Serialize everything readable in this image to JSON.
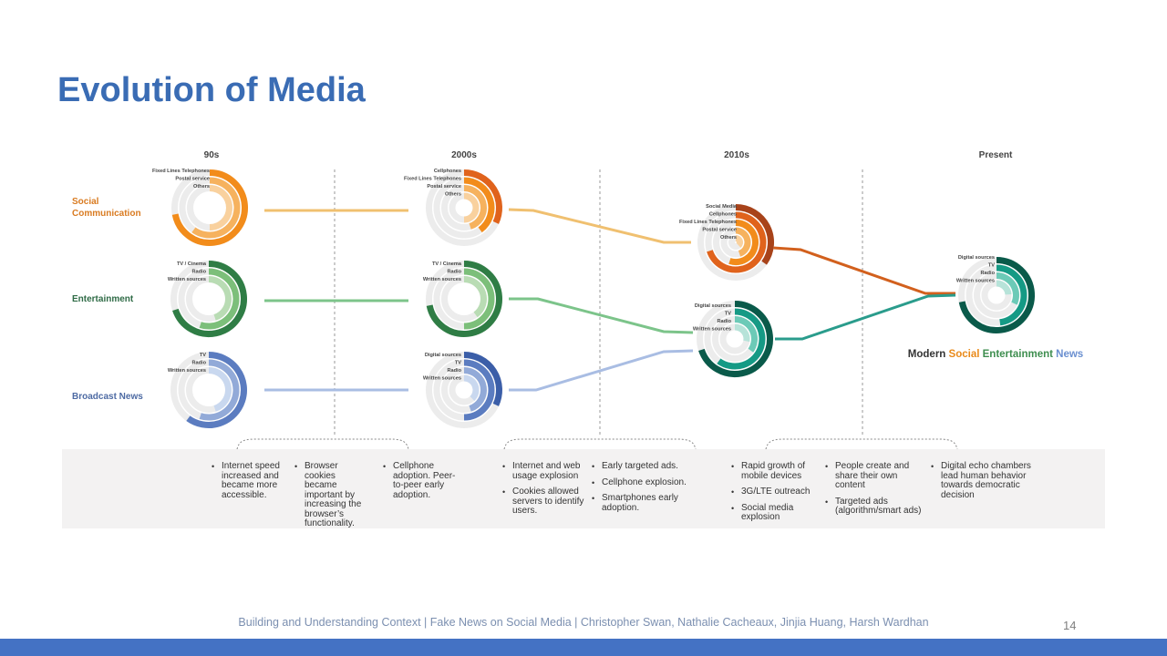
{
  "title": "Evolution of Media",
  "periods": [
    "90s",
    "2000s",
    "2010s",
    "Present"
  ],
  "categories": [
    {
      "label_lines": [
        "Social",
        "Communication"
      ],
      "color": "#d97b21"
    },
    {
      "label_lines": [
        "Entertainment"
      ],
      "color": "#2f6b46"
    },
    {
      "label_lines": [
        "Broadcast News"
      ],
      "color": "#4d6aa3"
    }
  ],
  "donuts": {
    "social_90s": {
      "labels": [
        "Fixed Lines Telephones",
        "Postal service",
        "Others"
      ],
      "colors": [
        "#f28c1b",
        "#f6b25e",
        "#f9d19e"
      ],
      "fractions": [
        0.72,
        0.6,
        0.5
      ]
    },
    "social_2000s": {
      "labels": [
        "Cellphones",
        "Fixed Lines Telephones",
        "Postal service",
        "Others"
      ],
      "colors": [
        "#e0631c",
        "#f28c1b",
        "#f6b25e",
        "#f9d19e"
      ],
      "fractions": [
        0.32,
        0.4,
        0.45,
        0.5
      ]
    },
    "social_2010s": {
      "labels": [
        "Social Media",
        "Cellphones",
        "Fixed Lines Telephones",
        "Postal service",
        "Others"
      ],
      "colors": [
        "#a8431a",
        "#e0631c",
        "#f28c1b",
        "#f6b25e",
        "#f9d19e"
      ],
      "fractions": [
        0.35,
        0.7,
        0.55,
        0.45,
        0.38
      ]
    },
    "ent_90s": {
      "labels": [
        "TV / Cinema",
        "Radio",
        "Written sources"
      ],
      "colors": [
        "#2f7d45",
        "#7cbf7a",
        "#b9dcb4"
      ],
      "fractions": [
        0.7,
        0.55,
        0.45
      ]
    },
    "ent_2000s": {
      "labels": [
        "TV / Cinema",
        "Radio",
        "Written sources"
      ],
      "colors": [
        "#2f7d45",
        "#7cbf7a",
        "#b9dcb4"
      ],
      "fractions": [
        0.72,
        0.5,
        0.4
      ]
    },
    "news_90s": {
      "labels": [
        "TV",
        "Radio",
        "Written sources"
      ],
      "colors": [
        "#5b7cc0",
        "#92aad8",
        "#c9d8ef"
      ],
      "fractions": [
        0.6,
        0.55,
        0.45
      ]
    },
    "news_2000s": {
      "labels": [
        "Digital sources",
        "TV",
        "Radio",
        "Written sources"
      ],
      "colors": [
        "#3b5ea8",
        "#5b7cc0",
        "#92aad8",
        "#c9d8ef"
      ],
      "fractions": [
        0.32,
        0.5,
        0.45,
        0.38
      ]
    },
    "news_2010s": {
      "labels": [
        "Digital sources",
        "TV",
        "Radio",
        "Written sources"
      ],
      "colors": [
        "#0a5a4a",
        "#159a85",
        "#6ccab7",
        "#b7e3d9"
      ],
      "fractions": [
        0.7,
        0.6,
        0.35,
        0.28
      ]
    },
    "present": {
      "labels": [
        "Digital sources",
        "TV",
        "Radio",
        "Written sources"
      ],
      "colors": [
        "#0a5a4a",
        "#159a85",
        "#6ccab7",
        "#b7e3d9"
      ],
      "fractions": [
        0.72,
        0.48,
        0.32,
        0.24
      ]
    }
  },
  "merged_label": {
    "prefix": "Modern ",
    "social": "Social",
    "entertainment": "Entertainment",
    "news": "News",
    "social_color": "#e98a1a",
    "entertainment_color": "#3e8e4f",
    "news_color": "#6a8fd0"
  },
  "notes": {
    "col1": [
      "Internet speed increased and became more accessible."
    ],
    "col2": [
      "Browser cookies became important by increasing the browser’s functionality."
    ],
    "col3": [
      "Cellphone adoption. Peer-to-peer early adoption."
    ],
    "col4": [
      "Internet and web usage explosion",
      "Cookies allowed servers to identify users."
    ],
    "col5": [
      "Early targeted ads.",
      "Cellphone explosion.",
      "Smartphones early adoption."
    ],
    "col6": [
      "Rapid growth of mobile devices",
      "3G/LTE outreach",
      "Social media explosion"
    ],
    "col7": [
      "People create and share their own content",
      "Targeted ads (algorithm/smart ads)"
    ],
    "col8": [
      "Digital echo chambers lead human behavior towards democratic decision"
    ]
  },
  "footer": "Building and Understanding Context | Fake News on Social Media | Christopher Swan, Nathalie Cacheaux, Jinjia Huang, Harsh Wardhan",
  "page_number": "14",
  "colors": {
    "accent": "#3a6cb4",
    "bar": "#4472c4",
    "flow_social": "#f0c070",
    "flow_ent": "#7cc48a",
    "flow_news": "#a9bde3"
  }
}
